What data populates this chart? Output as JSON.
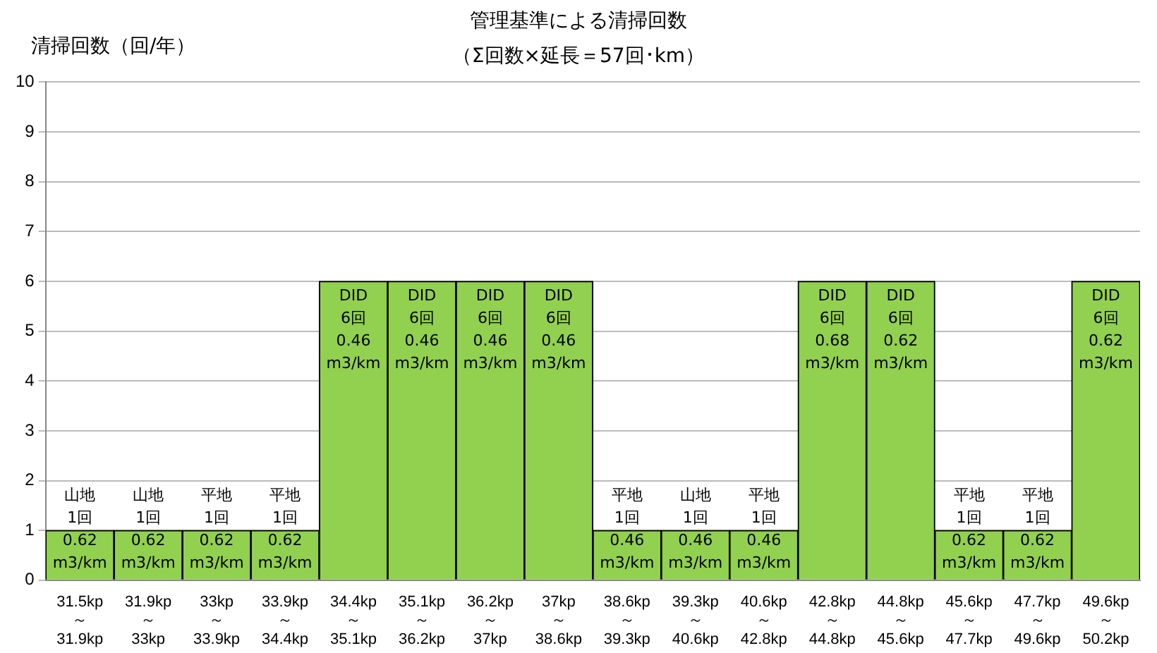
{
  "chart_data": {
    "type": "bar",
    "title": "管理基準による清掃回数",
    "subtitle": "（Σ回数×延長＝57回･km）",
    "ylabel": "清掃回数（回/年）",
    "categories": [
      "31.5kp\n～\n31.9kp",
      "31.9kp\n～\n33kp",
      "33kp\n～\n33.9kp",
      "33.9kp\n～\n34.4kp",
      "34.4kp\n～\n35.1kp",
      "35.1kp\n～\n36.2kp",
      "36.2kp\n～\n37kp",
      "37kp\n～\n38.6kp",
      "38.6kp\n～\n39.3kp",
      "39.3kp\n～\n40.6kp",
      "40.6kp\n～\n42.8kp",
      "42.8kp\n～\n44.8kp",
      "44.8kp\n～\n45.6kp",
      "45.6kp\n～\n47.7kp",
      "47.7kp\n～\n49.6kp",
      "49.6kp\n～\n50.2kp"
    ],
    "values": [
      1,
      1,
      1,
      1,
      6,
      6,
      6,
      6,
      1,
      1,
      1,
      6,
      6,
      1,
      1,
      6
    ],
    "value_labels": [
      "山地\n1回\n0.62\nm3/km",
      "山地\n1回\n0.62\nm3/km",
      "平地\n1回\n0.62\nm3/km",
      "平地\n1回\n0.62\nm3/km",
      "DID\n6回\n0.46\nm3/km",
      "DID\n6回\n0.46\nm3/km",
      "DID\n6回\n0.46\nm3/km",
      "DID\n6回\n0.46\nm3/km",
      "平地\n1回\n0.46\nm3/km",
      "山地\n1回\n0.46\nm3/km",
      "平地\n1回\n0.46\nm3/km",
      "DID\n6回\n0.68\nm3/km",
      "DID\n6回\n0.62\nm3/km",
      "平地\n1回\n0.62\nm3/km",
      "平地\n1回\n0.62\nm3/km",
      "DID\n6回\n0.62\nm3/km"
    ],
    "color": "#92d050",
    "ylim": [
      0,
      10
    ],
    "yticks": [
      0,
      1,
      2,
      3,
      4,
      5,
      6,
      7,
      8,
      9,
      10
    ],
    "grid": "y",
    "legend": false
  }
}
